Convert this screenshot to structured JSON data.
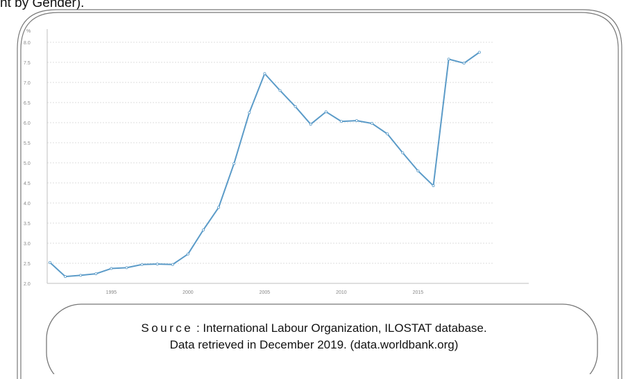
{
  "header": {
    "fragment": "nt by Gender)."
  },
  "source": {
    "label": "Source",
    "line1": ": International Labour Organization, ILOSTAT database.",
    "line2": "Data retrieved in December 2019. (data.worldbank.org)"
  },
  "chart_data": {
    "type": "line",
    "ylabel": "%",
    "ylim": [
      2.0,
      8.0
    ],
    "xlim": [
      1991,
      2021
    ],
    "yticks": [
      "2.0",
      "2.5",
      "3.0",
      "3.5",
      "4.0",
      "4.5",
      "5.0",
      "5.5",
      "6.0",
      "6.5",
      "7.0",
      "7.5",
      "8.0"
    ],
    "xticks": [
      "1995",
      "2000",
      "2005",
      "2010",
      "2015"
    ],
    "grid": true,
    "line_color": "#5b9bc8",
    "x": [
      1991,
      1992,
      1993,
      1994,
      1995,
      1996,
      1997,
      1998,
      1999,
      2000,
      2001,
      2002,
      2003,
      2004,
      2005,
      2006,
      2007,
      2008,
      2009,
      2010,
      2011,
      2012,
      2013,
      2014,
      2015,
      2016,
      2017,
      2018,
      2019
    ],
    "series": [
      {
        "values": [
          2.52,
          2.17,
          2.2,
          2.24,
          2.37,
          2.39,
          2.47,
          2.48,
          2.47,
          2.73,
          3.33,
          3.89,
          4.98,
          6.25,
          7.22,
          6.8,
          6.4,
          5.96,
          6.27,
          6.03,
          6.05,
          5.98,
          5.72,
          5.25,
          4.8,
          4.43,
          7.58,
          7.48,
          7.75
        ]
      }
    ]
  }
}
